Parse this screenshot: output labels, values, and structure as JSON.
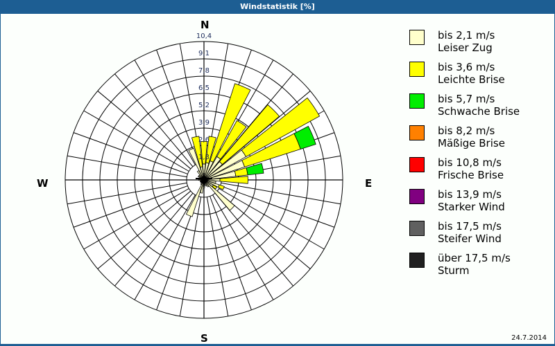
{
  "window": {
    "title": "Windstatistik [%]",
    "date": "24.7.2014"
  },
  "compass": {
    "N": "N",
    "E": "E",
    "S": "S",
    "W": "W"
  },
  "legend": [
    {
      "range": "bis 2,1 m/s",
      "name": "Leiser Zug",
      "color": "#ffffcc"
    },
    {
      "range": "bis 3,6 m/s",
      "name": "Leichte Brise",
      "color": "#ffff00"
    },
    {
      "range": "bis 5,7 m/s",
      "name": "Schwache Brise",
      "color": "#00ee00"
    },
    {
      "range": "bis 8,2 m/s",
      "name": "Mäßige Brise",
      "color": "#ff8000"
    },
    {
      "range": "bis 10,8 m/s",
      "name": "Frische Brise",
      "color": "#ff0000"
    },
    {
      "range": "bis 13,9 m/s",
      "name": "Starker Wind",
      "color": "#800080"
    },
    {
      "range": "bis 17,5 m/s",
      "name": "Steifer Wind",
      "color": "#606060"
    },
    {
      "range": "über 17,5 m/s",
      "name": "Sturm",
      "color": "#202020"
    }
  ],
  "chart_data": {
    "type": "polar-bar (wind rose)",
    "title": "Windstatistik [%]",
    "unit": "%",
    "radial_ticks": [
      "1,3",
      "2,6",
      "3,9",
      "5,2",
      "6,5",
      "7,8",
      "9,1",
      "10,4"
    ],
    "radial_max": 10.4,
    "grid": true,
    "legend_position": "right",
    "sector_width_deg": 11.25,
    "series_names": [
      "bis 2,1 m/s",
      "bis 3,6 m/s",
      "bis 5,7 m/s",
      "bis 8,2 m/s",
      "bis 10,8 m/s",
      "bis 13,9 m/s",
      "bis 17,5 m/s",
      "über 17,5 m/s"
    ],
    "directions_deg": [
      0,
      11.25,
      22.5,
      33.75,
      45,
      56.25,
      67.5,
      78.75,
      90,
      101.25,
      112.5,
      123.75,
      135,
      146.25,
      157.5,
      168.75,
      180,
      191.25,
      202.5,
      213.75,
      225,
      236.25,
      247.5,
      258.75,
      270,
      281.25,
      292.5,
      303.75,
      315,
      326.25,
      337.5,
      348.75
    ],
    "series": [
      {
        "name": "bis 2,1 m/s",
        "values": [
          1.2,
          1.3,
          1.5,
          2.0,
          1.8,
          3.6,
          3.2,
          2.4,
          1.2,
          0.9,
          1.2,
          0.8,
          3.0,
          0.6,
          0.5,
          0.4,
          0.6,
          1.0,
          2.9,
          0.4,
          0.3,
          0.3,
          0.3,
          0.3,
          0.4,
          0.3,
          0.3,
          0.5,
          0.5,
          0.8,
          2.5,
          1.0
        ]
      },
      {
        "name": "bis 3,6 m/s",
        "values": [
          1.7,
          2.0,
          6.1,
          3.1,
          5.6,
          6.3,
          4.4,
          0.9,
          2.1,
          0.0,
          0.4,
          0.3,
          0.0,
          0,
          0,
          0,
          0,
          0,
          0,
          0,
          0,
          0,
          0,
          0,
          0,
          0,
          0,
          0,
          0,
          0,
          0,
          2.3
        ]
      },
      {
        "name": "bis 5,7 m/s",
        "values": [
          0,
          0,
          0,
          0,
          0,
          0,
          1.2,
          1.2,
          0,
          0,
          0,
          0,
          0,
          0,
          0,
          0,
          0,
          0,
          0,
          0,
          0,
          0,
          0,
          0,
          0,
          0,
          0,
          0,
          0,
          0,
          0,
          0
        ]
      },
      {
        "name": "bis 8,2 m/s",
        "values": [
          0,
          0,
          0,
          0,
          0,
          0,
          0,
          0,
          0,
          0,
          0,
          0,
          0,
          0,
          0,
          0,
          0,
          0,
          0,
          0,
          0,
          0,
          0,
          0,
          0,
          0,
          0,
          0,
          0,
          0,
          0,
          0
        ]
      },
      {
        "name": "bis 10,8 m/s",
        "values": [
          0,
          0,
          0,
          0,
          0,
          0,
          0,
          0,
          0,
          0,
          0,
          0,
          0,
          0,
          0,
          0,
          0,
          0,
          0,
          0,
          0,
          0,
          0,
          0,
          0,
          0,
          0,
          0,
          0,
          0,
          0,
          0
        ]
      },
      {
        "name": "bis 13,9 m/s",
        "values": [
          0,
          0,
          0,
          0,
          0,
          0,
          0,
          0,
          0,
          0,
          0,
          0,
          0,
          0,
          0,
          0,
          0,
          0,
          0,
          0,
          0,
          0,
          0,
          0,
          0,
          0,
          0,
          0,
          0,
          0,
          0,
          0
        ]
      },
      {
        "name": "bis 17,5 m/s",
        "values": [
          0,
          0,
          0,
          0,
          0,
          0,
          0,
          0,
          0,
          0,
          0,
          0,
          0,
          0,
          0,
          0,
          0,
          0,
          0,
          0,
          0,
          0,
          0,
          0,
          0,
          0,
          0,
          0,
          0,
          0,
          0,
          0
        ]
      },
      {
        "name": "über 17,5 m/s",
        "values": [
          0,
          0,
          0,
          0,
          0,
          0,
          0,
          0,
          0,
          0,
          0,
          0,
          0,
          0,
          0,
          0,
          0,
          0,
          0,
          0,
          0,
          0,
          0,
          0,
          0,
          0,
          0,
          0,
          0,
          0,
          0,
          0
        ]
      }
    ]
  }
}
